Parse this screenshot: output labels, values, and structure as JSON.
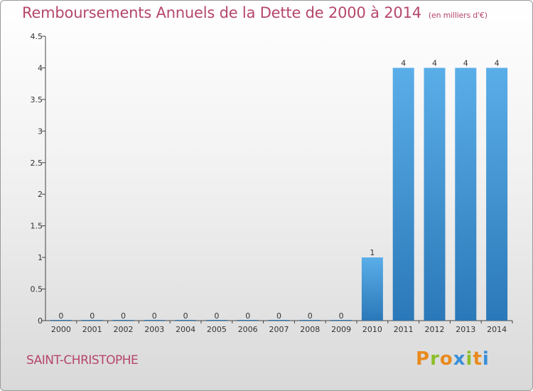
{
  "title": "Remboursements Annuels de la Dette de 2000 à 2014",
  "unit": "(en milliers d'€)",
  "commune": "SAINT-CHRISTOPHE",
  "logo": [
    "P",
    "r",
    "o",
    "x",
    "i",
    "t",
    "i"
  ],
  "colors": {
    "title": "#b5476a",
    "bar_top": "#5aaee8",
    "bar_bottom": "#2b78b8",
    "logo": [
      "#e98a1e",
      "#8bbf2a",
      "#e98a1e",
      "#3a8fd8",
      "#8bbf2a",
      "#e98a1e",
      "#3a8fd8"
    ]
  },
  "chart_data": {
    "type": "bar",
    "categories": [
      "2000",
      "2001",
      "2002",
      "2003",
      "2004",
      "2005",
      "2006",
      "2007",
      "2008",
      "2009",
      "2010",
      "2011",
      "2012",
      "2013",
      "2014"
    ],
    "values": [
      0,
      0,
      0,
      0,
      0,
      0,
      0,
      0,
      0,
      0,
      1,
      4,
      4,
      4,
      4
    ],
    "data_labels": [
      "0",
      "0",
      "0",
      "0",
      "0",
      "0",
      "0",
      "0",
      "0",
      "0",
      "1",
      "4",
      "4",
      "4",
      "4"
    ],
    "yticks": [
      "0",
      "0.5",
      "1",
      "1.5",
      "2",
      "2.5",
      "3",
      "3.5",
      "4",
      "4.5"
    ],
    "ytick_values": [
      0,
      0.5,
      1,
      1.5,
      2,
      2.5,
      3,
      3.5,
      4,
      4.5
    ],
    "ylim": [
      0,
      4.5
    ],
    "grid": false,
    "legend": "none"
  }
}
